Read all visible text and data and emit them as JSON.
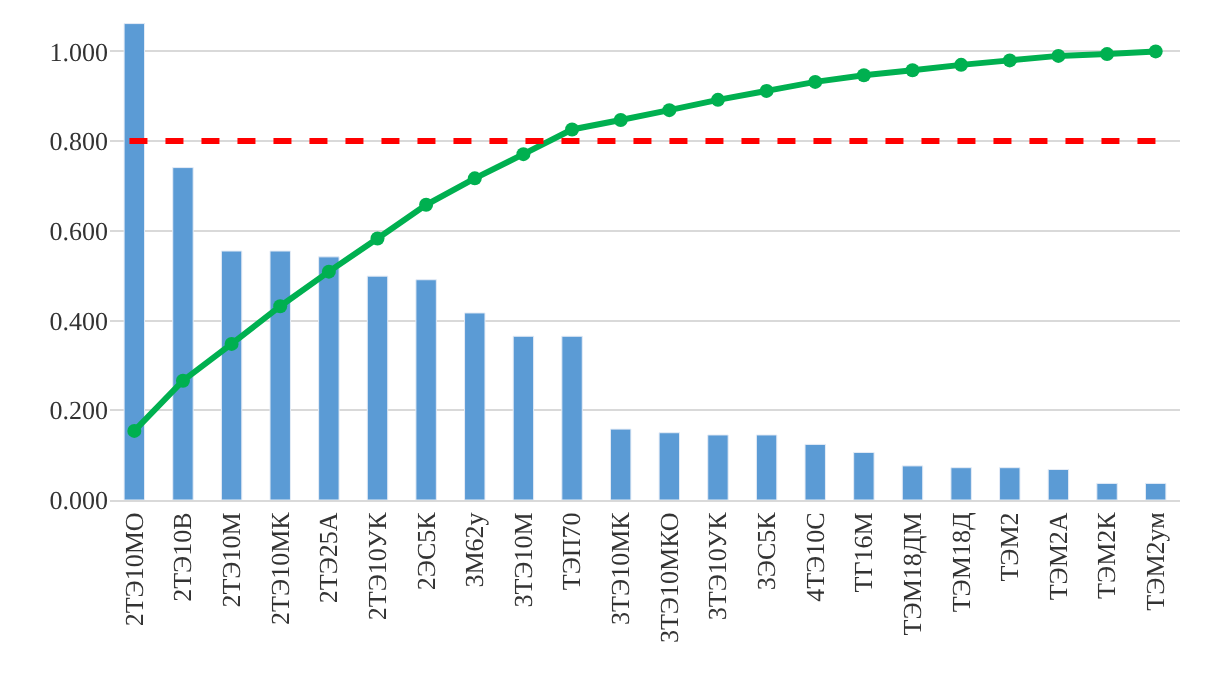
{
  "chart_data": {
    "type": "bar",
    "categories": [
      "2ТЭ10МО",
      "2ТЭ10В",
      "2ТЭ10М",
      "2ТЭ10МК",
      "2ТЭ25А",
      "2ТЭ10УК",
      "2ЭС5К",
      "3М62у",
      "3ТЭ10М",
      "ТЭП70",
      "3ТЭ10МК",
      "3ТЭ10МКО",
      "3ТЭ10УК",
      "3ЭС5К",
      "4ТЭ10С",
      "ТГ16М",
      "ТЭМ18ДМ",
      "ТЭМ18Д",
      "ТЭМ2",
      "ТЭМ2А",
      "ТЭМ2К",
      "ТЭМ2ум"
    ],
    "series": [
      {
        "color": "#5b9bd5",
        "values": [
          1.062,
          0.741,
          0.555,
          0.555,
          0.542,
          0.499,
          0.491,
          0.417,
          0.365,
          0.365,
          0.158,
          0.15,
          0.145,
          0.145,
          0.124,
          0.106,
          0.076,
          0.072,
          0.072,
          0.068,
          0.037,
          0.037
        ]
      },
      {
        "type": "line",
        "color": "#00b050",
        "marker": "circle",
        "line_style": "solid",
        "values": [
          0.154,
          0.266,
          0.348,
          0.432,
          0.509,
          0.583,
          0.658,
          0.717,
          0.771,
          0.826,
          0.847,
          0.869,
          0.892,
          0.912,
          0.932,
          0.947,
          0.958,
          0.97,
          0.98,
          0.99,
          0.994,
          1.0
        ]
      }
    ],
    "ref_lines": [
      {
        "axis": "y",
        "value": 0.8,
        "color": "#ff0000",
        "line_style": "dashed"
      }
    ],
    "ylim": [
      0,
      1.07
    ],
    "yticks": [
      {
        "value": 0,
        "label": "0.000"
      },
      {
        "value": 0.2,
        "label": "0.200"
      },
      {
        "value": 0.4,
        "label": "0.400"
      },
      {
        "value": 0.6,
        "label": "0.600"
      },
      {
        "value": 0.8,
        "label": "0.800"
      },
      {
        "value": 1.0,
        "label": "1.000"
      }
    ],
    "grid": "y",
    "legend": false
  }
}
